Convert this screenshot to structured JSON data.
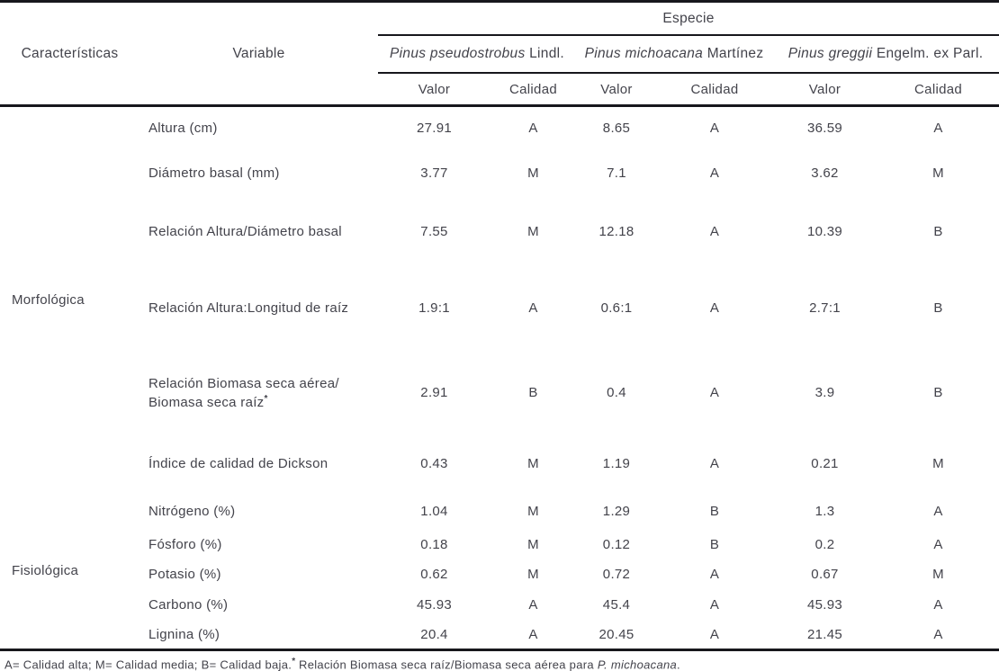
{
  "table": {
    "header": {
      "caracteristicas": "Características",
      "variable": "Variable",
      "especie": "Especie",
      "species": [
        {
          "name_italic": "Pinus pseudostrobus",
          "authority": "Lindl."
        },
        {
          "name_italic": "Pinus michoacana",
          "authority": "Martínez"
        },
        {
          "name_italic": "Pinus greggii",
          "authority": "Engelm. ex Parl."
        }
      ],
      "valor": "Valor",
      "calidad": "Calidad"
    },
    "groups": [
      {
        "name": "Morfológica",
        "rows": [
          {
            "variable_lines": [
              "Altura (cm)"
            ],
            "cells": [
              "27.91",
              "A",
              "8.65",
              "A",
              "36.59",
              "A"
            ]
          },
          {
            "variable_lines": [
              "Diámetro basal (mm)"
            ],
            "cells": [
              "3.77",
              "M",
              "7.1",
              "A",
              "3.62",
              "M"
            ]
          },
          {
            "variable_lines": [
              "Relación Altura/Diámetro basal"
            ],
            "cells": [
              "7.55",
              "M",
              "12.18",
              "A",
              "10.39",
              "B"
            ]
          },
          {
            "variable_lines": [
              "Relación Altura:Longitud de raíz"
            ],
            "cells": [
              "1.9:1",
              "A",
              "0.6:1",
              "A",
              "2.7:1",
              "B"
            ]
          },
          {
            "variable_lines": [
              "Relación Biomasa seca aérea/",
              "Biomasa seca raíz*"
            ],
            "cells": [
              "2.91",
              "B",
              "0.4",
              "A",
              "3.9",
              "B"
            ]
          },
          {
            "variable_lines": [
              "Índice de calidad de Dickson"
            ],
            "cells": [
              "0.43",
              "M",
              "1.19",
              "A",
              "0.21",
              "M"
            ]
          }
        ]
      },
      {
        "name": "Fisiológica",
        "rows": [
          {
            "variable_lines": [
              "Nitrógeno (%)"
            ],
            "cells": [
              "1.04",
              "M",
              "1.29",
              "B",
              "1.3",
              "A"
            ]
          },
          {
            "variable_lines": [
              "Fósforo (%)"
            ],
            "cells": [
              "0.18",
              "M",
              "0.12",
              "B",
              "0.2",
              "A"
            ]
          },
          {
            "variable_lines": [
              "Potasio (%)"
            ],
            "cells": [
              "0.62",
              "M",
              "0.72",
              "A",
              "0.67",
              "M"
            ]
          },
          {
            "variable_lines": [
              "Carbono (%)"
            ],
            "cells": [
              "45.93",
              "A",
              "45.4",
              "A",
              "45.93",
              "A"
            ]
          },
          {
            "variable_lines": [
              "Lignina (%)"
            ],
            "cells": [
              "20.4",
              "A",
              "20.45",
              "A",
              "21.45",
              "A"
            ]
          }
        ]
      }
    ],
    "footnote": {
      "legend": "A= Calidad alta; M= Calidad media; B= Calidad baja.",
      "marker": "*",
      "note": " Relación Biomasa seca raíz/Biomasa seca aérea para ",
      "note_italic": "P. michoacana",
      "note_end": "."
    }
  }
}
